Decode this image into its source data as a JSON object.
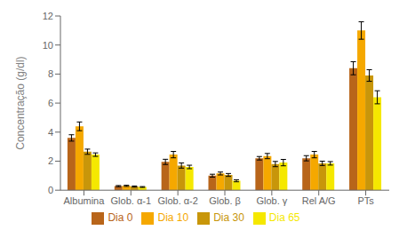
{
  "chart_data": {
    "type": "bar",
    "ylabel": "Concentração (g/dl)",
    "categories": [
      "Albumina",
      "Glob. α-1",
      "Glob. α-2",
      "Glob. β",
      "Glob. γ",
      "Rel A/G",
      "PTs"
    ],
    "series": [
      {
        "name": "Dia 0",
        "color": "#B8651A",
        "values": [
          3.6,
          0.28,
          1.95,
          1.0,
          2.2,
          2.2,
          8.4
        ],
        "errors": [
          0.22,
          0.04,
          0.18,
          0.1,
          0.12,
          0.18,
          0.45
        ]
      },
      {
        "name": "Dia 10",
        "color": "#F5A800",
        "values": [
          4.4,
          0.3,
          2.45,
          1.15,
          2.35,
          2.45,
          11.0
        ],
        "errors": [
          0.3,
          0.04,
          0.22,
          0.1,
          0.18,
          0.22,
          0.6
        ]
      },
      {
        "name": "Dia 30",
        "color": "#C8960A",
        "values": [
          2.65,
          0.25,
          1.7,
          1.05,
          1.8,
          1.85,
          7.9
        ],
        "errors": [
          0.18,
          0.04,
          0.18,
          0.1,
          0.18,
          0.15,
          0.4
        ]
      },
      {
        "name": "Dia 65",
        "color": "#F5E800",
        "values": [
          2.45,
          0.22,
          1.6,
          0.65,
          1.9,
          1.85,
          6.4
        ],
        "errors": [
          0.12,
          0.03,
          0.12,
          0.07,
          0.22,
          0.12,
          0.45
        ]
      }
    ],
    "ylim": [
      0,
      12
    ],
    "yticks": [
      0,
      2,
      4,
      6,
      8,
      10,
      12
    ],
    "grid": false,
    "legend": "bottom"
  }
}
